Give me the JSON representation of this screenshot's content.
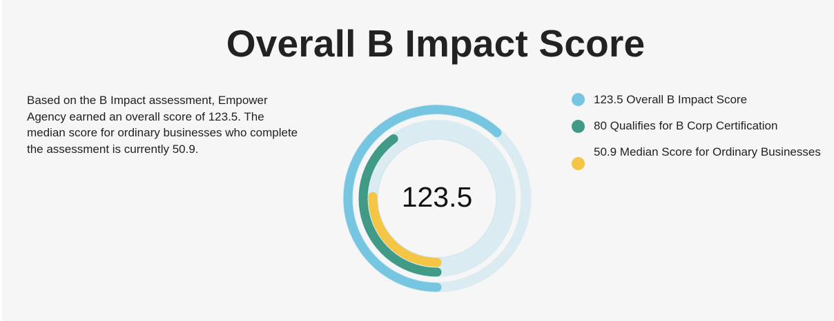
{
  "title": "Overall B Impact Score",
  "description": "Based on the B Impact assessment, Empower Agency earned an overall score of 123.5. The median score for ordinary businesses who complete the assessment is currently 50.9.",
  "center_label": "123.5",
  "colors": {
    "overall": "#76c6e2",
    "certification": "#419a86",
    "median": "#f5c545",
    "track": "#daecf2"
  },
  "legend": [
    {
      "label": "123.5 Overall B Impact Score"
    },
    {
      "label": "80 Qualifies for B Corp Certification"
    },
    {
      "label": "50.9 Median Score for Ordinary Businesses"
    }
  ],
  "chart_data": {
    "type": "radial-bar",
    "max": 200,
    "series": [
      {
        "name": "Overall B Impact Score",
        "value": 123.5
      },
      {
        "name": "Qualifies for B Corp Certification",
        "value": 80
      },
      {
        "name": "Median Score for Ordinary Businesses",
        "value": 50.9
      }
    ]
  }
}
